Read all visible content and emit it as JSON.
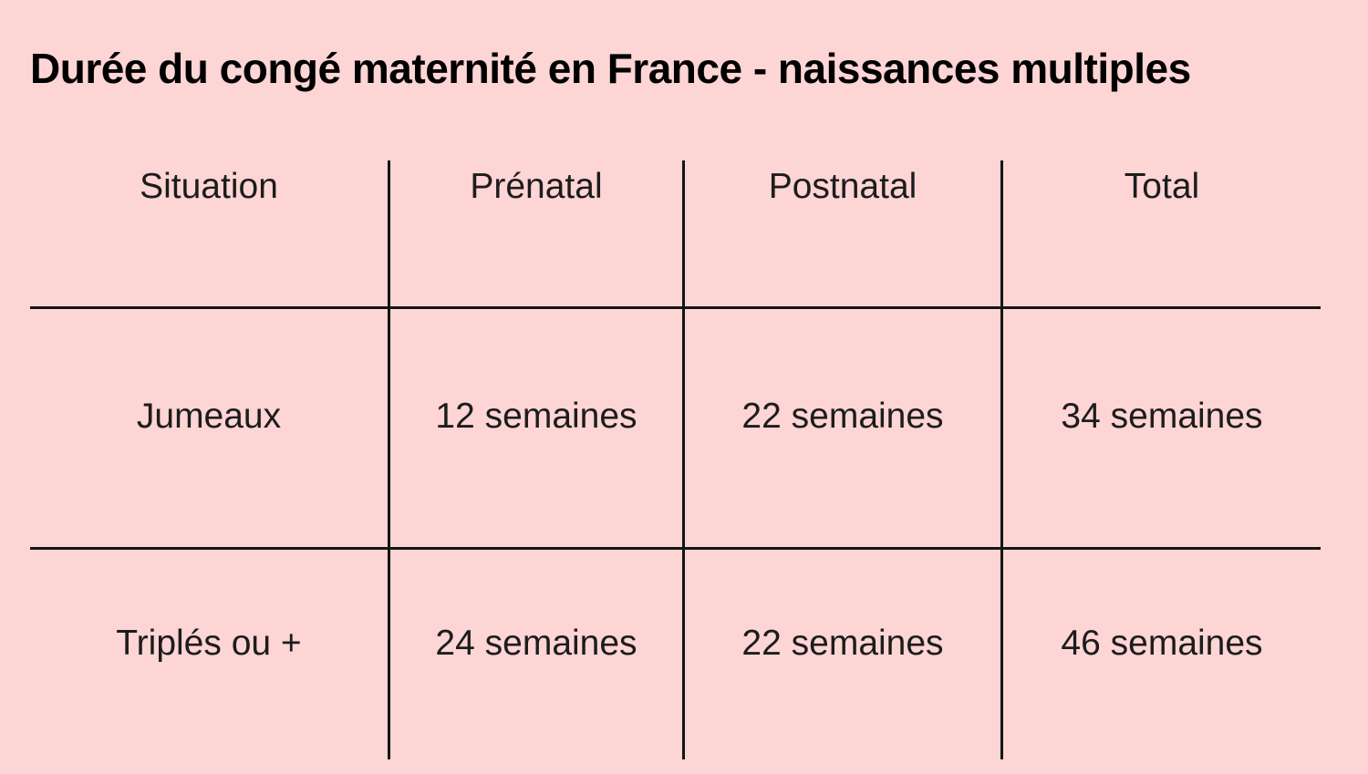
{
  "title": "Durée du congé maternité en France - naissances multiples",
  "colors": {
    "background": "#FCD5D4",
    "grid_line": "#151515",
    "title_text": "#000000",
    "body_text": "#1C1C1C"
  },
  "chart_data": {
    "type": "table",
    "title": "Durée du congé maternité en France - naissances multiples",
    "columns": [
      "Situation",
      "Prénatal",
      "Postnatal",
      "Total"
    ],
    "rows": [
      [
        "Jumeaux",
        "12 semaines",
        "22 semaines",
        "34 semaines"
      ],
      [
        "Triplés ou +",
        "24 semaines",
        "22 semaines",
        "46 semaines"
      ]
    ],
    "numeric": [
      {
        "situation": "Jumeaux",
        "prenatal_weeks": 12,
        "postnatal_weeks": 22,
        "total_weeks": 34
      },
      {
        "situation": "Triplés ou +",
        "prenatal_weeks": 24,
        "postnatal_weeks": 22,
        "total_weeks": 46
      }
    ],
    "units": "semaines",
    "layout": {
      "grid": "on",
      "header_row": true,
      "columns_count": 4,
      "rows_count": 2
    }
  }
}
